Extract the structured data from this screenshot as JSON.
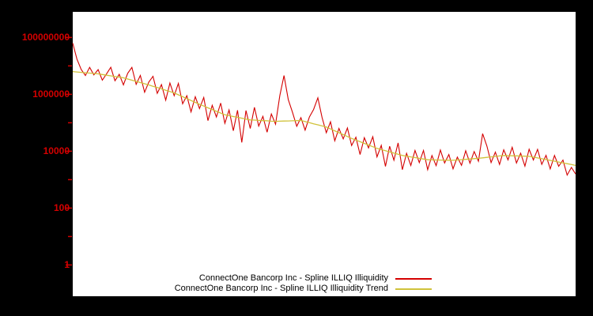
{
  "chart": {
    "background": "#000000",
    "plot_background": "#ffffff",
    "axis_label_color": "#d40000"
  },
  "legend": {
    "items": [
      {
        "label": "ConnectOne Bancorp Inc - Spline ILLIQ Illiquidity",
        "color": "#d40000"
      },
      {
        "label": "ConnectOne Bancorp Inc - Spline ILLIQ Illiquidity Trend",
        "color": "#d0c23a"
      }
    ]
  },
  "chart_data": {
    "type": "line",
    "title": "",
    "xlabel": "",
    "ylabel": "",
    "yscale": "log",
    "grid": false,
    "legend_position": "bottom-center",
    "yticks": [
      1,
      100,
      10000,
      1000000,
      100000000
    ],
    "ytick_labels": [
      "1",
      "100",
      "10000",
      "1000000",
      "100000000"
    ],
    "ylog_range": [
      -1.1,
      8.9
    ],
    "x_range": [
      0,
      119
    ],
    "series": [
      {
        "name": "ConnectOne Bancorp Inc - Spline ILLIQ Illiquidity",
        "color": "#d40000",
        "values": [
          63100000,
          17300000,
          7470000,
          4570000,
          8850000,
          4820000,
          7410000,
          3140000,
          5290000,
          8910000,
          3000000,
          5050000,
          2140000,
          5470000,
          8850000,
          2260000,
          4600000,
          1180000,
          2690000,
          4300000,
          1090000,
          2190000,
          621000,
          2490000,
          891000,
          2420000,
          464000,
          891000,
          242000,
          826000,
          316000,
          773000,
          119000,
          412000,
          160000,
          492000,
          95500,
          282000,
          52500,
          275000,
          20400,
          269000,
          63100,
          348000,
          76400,
          168000,
          46500,
          203000,
          89100,
          902000,
          4570000,
          653000,
          234000,
          75000,
          151000,
          55200,
          160000,
          292000,
          753000,
          154000,
          44700,
          108000,
          23300,
          63100,
          27100,
          65600,
          15800,
          31000,
          7640,
          29900,
          13100,
          32200,
          6310,
          16100,
          2930,
          15000,
          4820,
          19600,
          2240,
          8410,
          3160,
          10600,
          3980,
          10600,
          2240,
          7030,
          3110,
          11000,
          3860,
          7640,
          2400,
          6190,
          3180,
          10400,
          3780,
          9730,
          4470,
          41400,
          15200,
          3980,
          9270,
          3410,
          11200,
          4950,
          13800,
          3850,
          8510,
          2990,
          11700,
          4920,
          11600,
          3430,
          7190,
          2390,
          7080,
          2950,
          4900,
          1450,
          2690,
          1580
        ]
      },
      {
        "name": "ConnectOne Bancorp Inc - Spline ILLIQ Illiquidity Trend",
        "color": "#d0c23a",
        "values": [
          6310000,
          6120000,
          5930000,
          5750000,
          5580000,
          5410000,
          5250000,
          4970000,
          4710000,
          4470000,
          4230000,
          4010000,
          3800000,
          3450000,
          3140000,
          2850000,
          2590000,
          2360000,
          2140000,
          1920000,
          1730000,
          1550000,
          1390000,
          1250000,
          1120000,
          963000,
          826000,
          708000,
          607000,
          521000,
          447000,
          387000,
          336000,
          292000,
          253000,
          220000,
          191000,
          178000,
          166000,
          155000,
          145000,
          135000,
          126000,
          124000,
          121000,
          119000,
          117000,
          114000,
          112000,
          114000,
          115000,
          116000,
          117000,
          119000,
          120000,
          110000,
          101000,
          92300,
          84500,
          77300,
          70800,
          60700,
          52100,
          44700,
          38300,
          32900,
          28200,
          24600,
          21500,
          18800,
          16500,
          14400,
          12600,
          11400,
          10400,
          9440,
          8580,
          7790,
          7080,
          6680,
          6310,
          5960,
          5620,
          5310,
          5010,
          4980,
          4930,
          4900,
          4860,
          4820,
          4790,
          4920,
          5050,
          5190,
          5330,
          5470,
          5620,
          5840,
          6070,
          6310,
          6560,
          6810,
          7080,
          7000,
          6920,
          6840,
          6760,
          6680,
          6610,
          6190,
          5800,
          5430,
          5090,
          4760,
          4470,
          4170,
          3890,
          3630,
          3390,
          3160
        ]
      }
    ]
  }
}
